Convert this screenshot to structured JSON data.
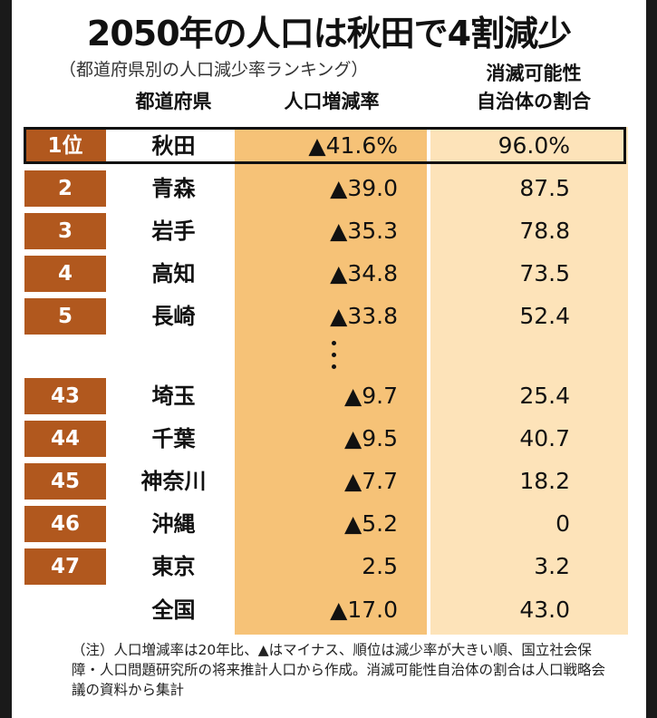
{
  "title": "2050年の人口は秋田で4割減少",
  "subtitle": "（都道府県別の人口減少率ランキング）",
  "headers": {
    "prefecture": "都道府県",
    "rate": "人口増減率",
    "ratio_line1": "消滅可能性",
    "ratio_line2": "自治体の割合"
  },
  "rows": [
    {
      "rank": "1位",
      "prefecture": "秋田",
      "rate": "▲41.6%",
      "ratio": "96.0%"
    },
    {
      "rank": "2",
      "prefecture": "青森",
      "rate": "▲39.0",
      "ratio": "87.5"
    },
    {
      "rank": "3",
      "prefecture": "岩手",
      "rate": "▲35.3",
      "ratio": "78.8"
    },
    {
      "rank": "4",
      "prefecture": "高知",
      "rate": "▲34.8",
      "ratio": "73.5"
    },
    {
      "rank": "5",
      "prefecture": "長崎",
      "rate": "▲33.8",
      "ratio": "52.4"
    },
    {
      "rank": "43",
      "prefecture": "埼玉",
      "rate": "▲9.7",
      "ratio": "25.4"
    },
    {
      "rank": "44",
      "prefecture": "千葉",
      "rate": "▲9.5",
      "ratio": "40.7"
    },
    {
      "rank": "45",
      "prefecture": "神奈川",
      "rate": "▲7.7",
      "ratio": "18.2"
    },
    {
      "rank": "46",
      "prefecture": "沖縄",
      "rate": "▲5.2",
      "ratio": "0"
    },
    {
      "rank": "47",
      "prefecture": "東京",
      "rate": "2.5",
      "ratio": "3.2"
    },
    {
      "rank": "",
      "prefecture": "全国",
      "rate": "▲17.0",
      "ratio": "43.0"
    }
  ],
  "note": "（注）人口増減率は20年比、▲はマイナス、順位は減少率が大きい順、国立社会保障・人口問題研究所の将来推計人口から作成。消滅可能性自治体の割合は人口戦略会議の資料から集計",
  "colors": {
    "rank_bg": "#b1581e",
    "rate_column": "#f6c277",
    "ratio_column": "#fde3b9"
  }
}
